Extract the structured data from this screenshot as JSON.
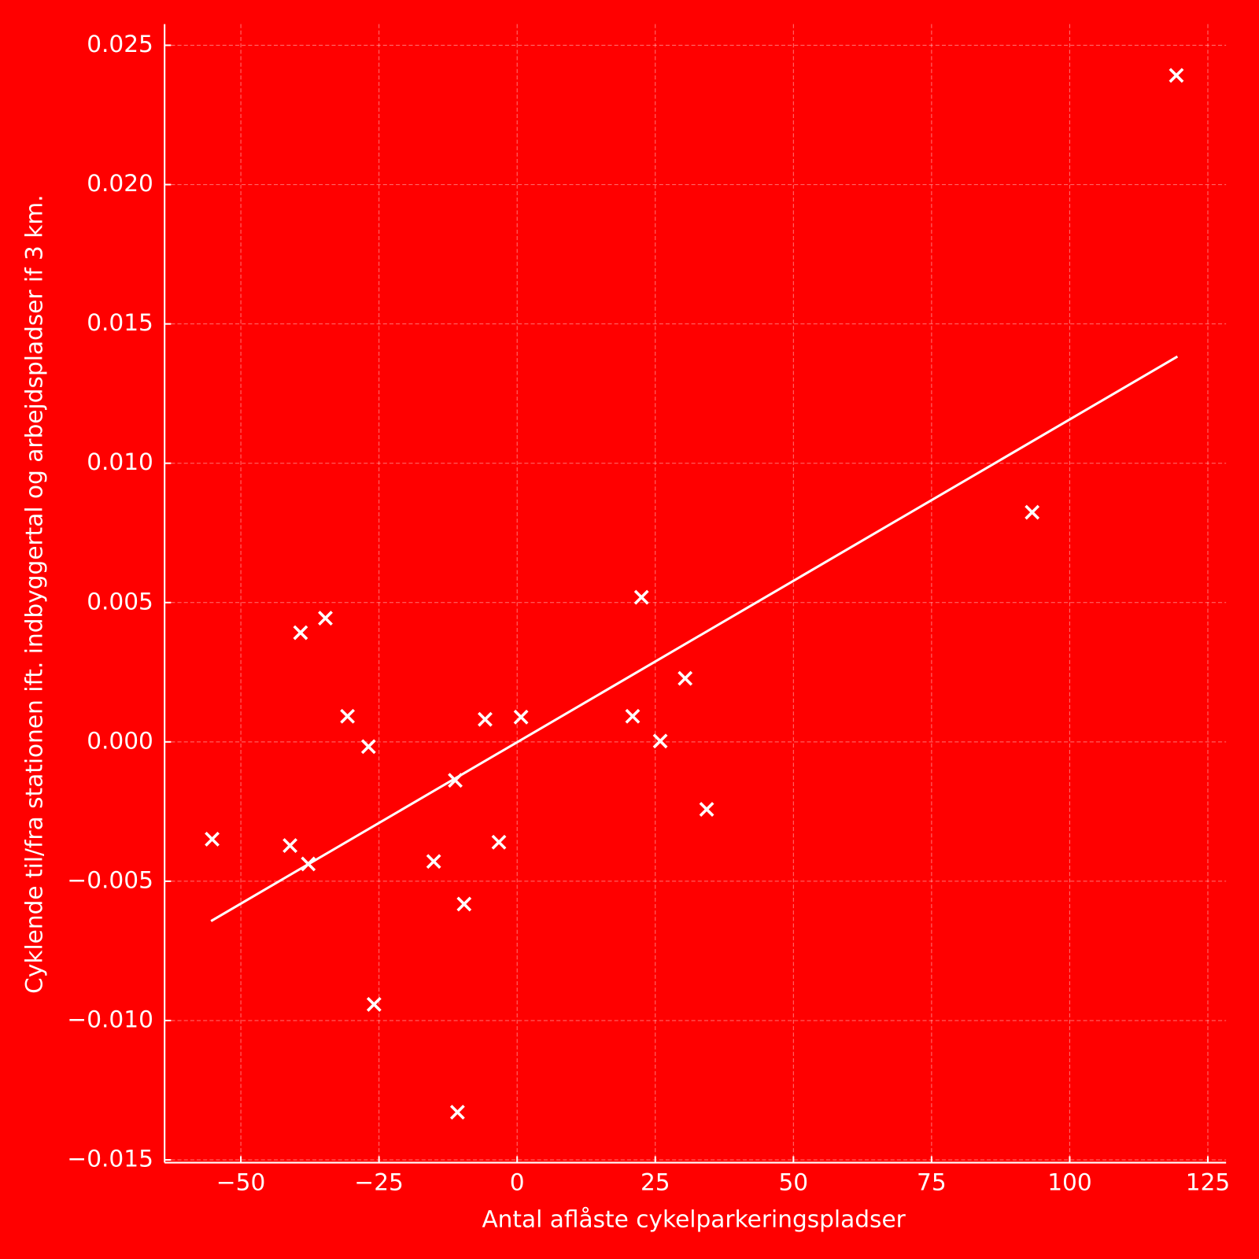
{
  "chart_data": {
    "type": "scatter",
    "xlabel": "Antal aflåste cykelparkeringspladser",
    "ylabel": "Cyklende til/fra stationen ift. indbyggertal og arbejdspladser if 3 km.",
    "background": "#ff0000",
    "color": "#ffffff",
    "marker": "x",
    "grid": true,
    "x": [
      -55.2,
      -41.1,
      -39.2,
      -37.8,
      -34.7,
      -30.7,
      -26.9,
      -25.9,
      -15.1,
      -11.2,
      -10.8,
      -9.6,
      -5.8,
      -3.3,
      0.7,
      20.9,
      22.5,
      25.9,
      30.4,
      34.3,
      93.2,
      119.3
    ],
    "y": [
      -0.00349,
      -0.00372,
      0.00392,
      -0.00438,
      0.00444,
      0.00092,
      -0.00017,
      -0.00942,
      -0.00429,
      -0.00138,
      -0.01329,
      -0.00582,
      0.00081,
      -0.0036,
      0.00089,
      0.00092,
      0.00519,
      3e-05,
      0.00228,
      -0.00242,
      0.00824,
      0.02392
    ],
    "trend_line": {
      "x": [
        -55.4,
        119.5
      ],
      "y": [
        -0.00643,
        0.01383
      ]
    },
    "xlim": [
      -63.8,
      128.3
    ],
    "ylim": [
      -0.0151,
      0.02576
    ],
    "xticks": [
      {
        "value": -50,
        "label": "−50"
      },
      {
        "value": -25,
        "label": "−25"
      },
      0,
      25,
      50,
      75,
      100,
      125
    ],
    "yticks": [
      {
        "value": -0.015,
        "label": "−0.015"
      },
      {
        "value": -0.01,
        "label": "−0.010"
      },
      {
        "value": -0.005,
        "label": "−0.005"
      },
      {
        "value": 0,
        "label": "0.000"
      },
      {
        "value": 0.005,
        "label": "0.005"
      },
      {
        "value": 0.01,
        "label": "0.010"
      },
      {
        "value": 0.015,
        "label": "0.015"
      },
      {
        "value": 0.02,
        "label": "0.020"
      },
      {
        "value": 0.025,
        "label": "0.025"
      }
    ]
  }
}
